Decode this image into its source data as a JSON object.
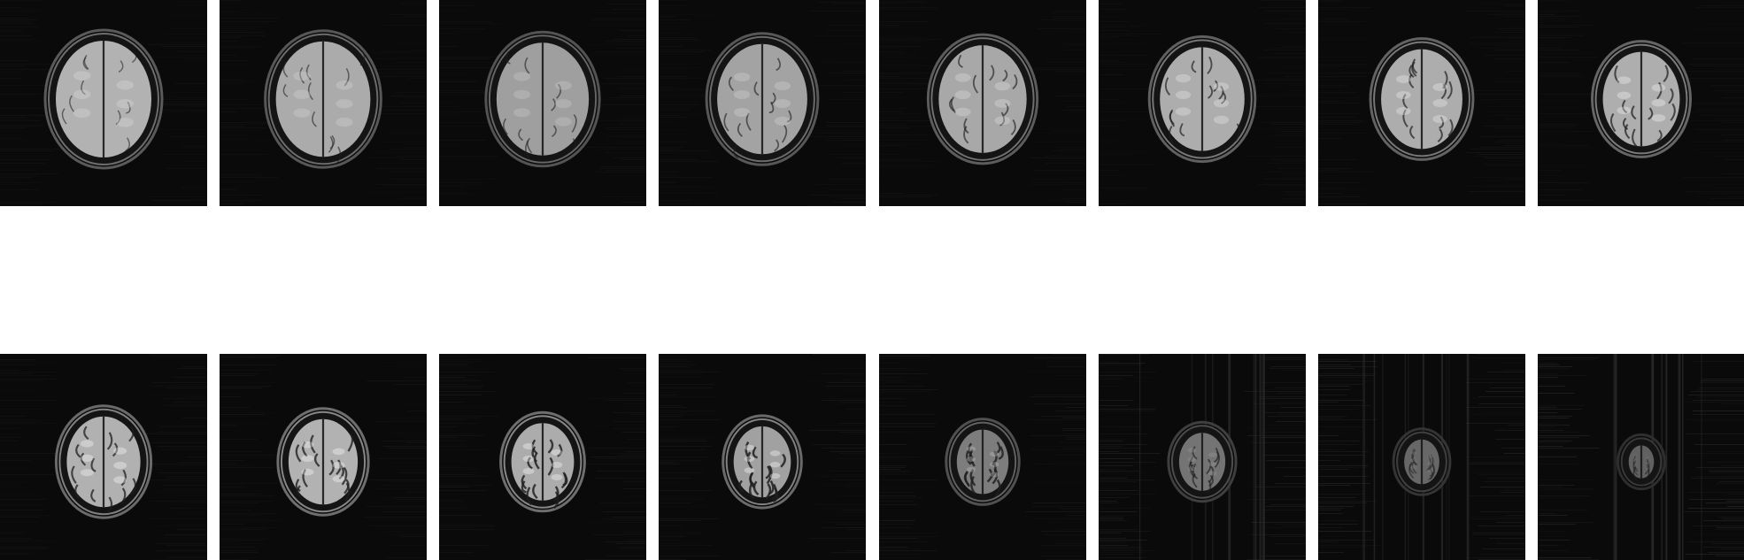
{
  "figure": {
    "background": "#ffffff",
    "tile_background": "#0a0a0a",
    "rows": [
      {
        "slices": [
          {
            "scale": 1.0,
            "brightness": 0.78,
            "contrast": 0.3,
            "noise": 0.1
          },
          {
            "scale": 0.99,
            "brightness": 0.76,
            "contrast": 0.34,
            "noise": 0.1
          },
          {
            "scale": 0.97,
            "brightness": 0.72,
            "contrast": 0.38,
            "noise": 0.1
          },
          {
            "scale": 0.95,
            "brightness": 0.76,
            "contrast": 0.45,
            "noise": 0.1
          },
          {
            "scale": 0.93,
            "brightness": 0.8,
            "contrast": 0.5,
            "noise": 0.1
          },
          {
            "scale": 0.9,
            "brightness": 0.84,
            "contrast": 0.55,
            "noise": 0.1
          },
          {
            "scale": 0.87,
            "brightness": 0.86,
            "contrast": 0.6,
            "noise": 0.11
          },
          {
            "scale": 0.83,
            "brightness": 0.88,
            "contrast": 0.64,
            "noise": 0.11
          }
        ]
      },
      {
        "slices": [
          {
            "scale": 0.8,
            "brightness": 0.92,
            "contrast": 0.7,
            "noise": 0.12
          },
          {
            "scale": 0.76,
            "brightness": 0.96,
            "contrast": 0.78,
            "noise": 0.13
          },
          {
            "scale": 0.7,
            "brightness": 0.96,
            "contrast": 0.85,
            "noise": 0.14
          },
          {
            "scale": 0.65,
            "brightness": 0.92,
            "contrast": 0.9,
            "noise": 0.15
          },
          {
            "scale": 0.6,
            "brightness": 0.7,
            "contrast": 0.85,
            "noise": 0.17
          },
          {
            "scale": 0.55,
            "brightness": 0.55,
            "contrast": 0.5,
            "noise": 0.24
          },
          {
            "scale": 0.45,
            "brightness": 0.45,
            "contrast": 0.3,
            "noise": 0.26
          },
          {
            "scale": 0.36,
            "brightness": 0.4,
            "contrast": 0.15,
            "noise": 0.28
          }
        ]
      }
    ]
  }
}
